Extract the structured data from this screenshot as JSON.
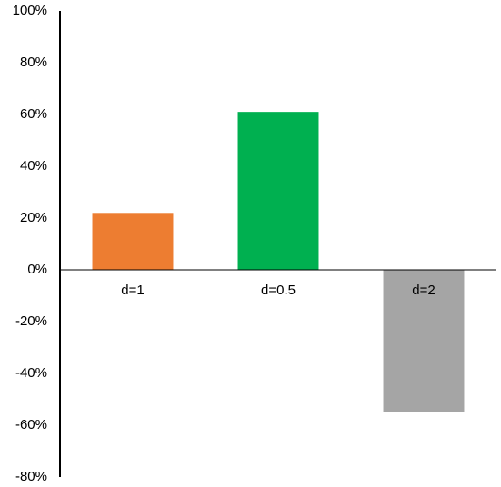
{
  "chart_data": {
    "type": "bar",
    "categories": [
      "d=1",
      "d=0.5",
      "d=2"
    ],
    "values": [
      22,
      61,
      -55
    ],
    "colors": [
      "#ED7D31",
      "#00B050",
      "#A5A5A5"
    ],
    "ylim": [
      -80,
      100
    ],
    "yticks": [
      {
        "value": -80,
        "label": "-80%"
      },
      {
        "value": -60,
        "label": "-60%"
      },
      {
        "value": -40,
        "label": "-40%"
      },
      {
        "value": -20,
        "label": "-20%"
      },
      {
        "value": 0,
        "label": "0%"
      },
      {
        "value": 20,
        "label": "20%"
      },
      {
        "value": 40,
        "label": "40%"
      },
      {
        "value": 60,
        "label": "60%"
      },
      {
        "value": 80,
        "label": "80%"
      },
      {
        "value": 100,
        "label": "100%"
      }
    ],
    "grid": false
  }
}
